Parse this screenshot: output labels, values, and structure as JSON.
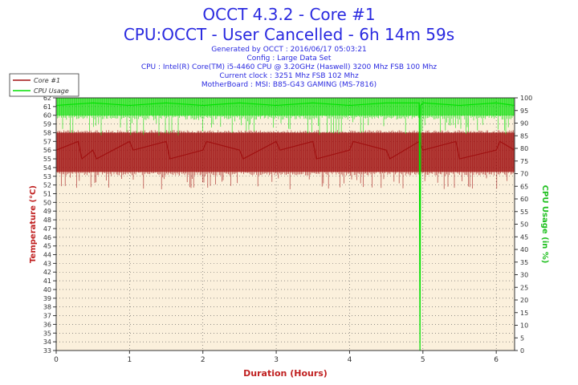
{
  "header": {
    "title": "OCCT 4.3.2 - Core #1",
    "subtitle": "CPU:OCCT - User Cancelled - 6h 14m 59s",
    "info_lines": [
      "Generated by OCCT : 2016/06/17 05:03:21",
      "Config : Large Data Set",
      "CPU : Intel(R) Core(TM) i5-4460 CPU @ 3.20GHz (Haswell) 3200 Mhz FSB 100 Mhz",
      "Current clock : 3251 Mhz FSB 102 Mhz",
      "MotherBoard : MSI: B85-G43 GAMING (MS-7816)"
    ]
  },
  "colors": {
    "temp": "#a01010",
    "cpu": "#00e000",
    "plot_bg": "#fbf0dc",
    "axis_label": "#c02020",
    "axis_label_right": "#20c020"
  },
  "chart_data": {
    "type": "line",
    "xlabel": "Duration (Hours)",
    "ylabel_left": "Temperature (°C)",
    "ylabel_right": "CPU Usage (in %)",
    "xlim": [
      0,
      6.25
    ],
    "ylim_left": [
      33,
      62
    ],
    "ylim_right": [
      0,
      100
    ],
    "x_ticks": [
      0,
      1,
      2,
      3,
      4,
      5,
      6
    ],
    "y_ticks_left": [
      33,
      34,
      35,
      36,
      37,
      38,
      39,
      40,
      41,
      42,
      43,
      44,
      45,
      46,
      47,
      48,
      49,
      50,
      51,
      52,
      53,
      54,
      55,
      56,
      57,
      58,
      59,
      60,
      61,
      62
    ],
    "y_ticks_right": [
      0,
      5,
      10,
      15,
      20,
      25,
      30,
      35,
      40,
      45,
      50,
      55,
      60,
      65,
      70,
      75,
      80,
      85,
      90,
      95,
      100
    ],
    "legend_position": "top-left",
    "series": [
      {
        "name": "Core #1",
        "axis": "left",
        "x": [
          0,
          0.3,
          0.35,
          0.5,
          0.55,
          1.0,
          1.05,
          1.5,
          1.55,
          2.0,
          2.05,
          2.5,
          2.55,
          3.0,
          3.05,
          3.5,
          3.55,
          4.0,
          4.05,
          4.5,
          4.55,
          4.95,
          5.0,
          5.45,
          5.5,
          6.0,
          6.05,
          6.25
        ],
        "y": [
          56,
          57,
          55,
          56,
          55,
          57,
          56,
          57,
          55,
          56,
          57,
          56,
          55,
          57,
          56,
          57,
          55,
          56,
          57,
          56,
          55,
          57,
          56,
          57,
          55,
          56,
          57,
          56
        ],
        "band": [
          53.5,
          58
        ]
      },
      {
        "name": "CPU Usage",
        "axis": "right",
        "x": [
          0,
          0.5,
          1.0,
          1.5,
          2.0,
          2.5,
          3.0,
          3.5,
          4.0,
          4.5,
          4.95,
          4.96,
          4.97,
          5.0,
          5.5,
          6.0,
          6.25
        ],
        "y": [
          97,
          98,
          97,
          98,
          97,
          98,
          97,
          98,
          97,
          98,
          98,
          0,
          97,
          98,
          97,
          98,
          97
        ],
        "band": [
          93,
          100
        ]
      }
    ]
  }
}
